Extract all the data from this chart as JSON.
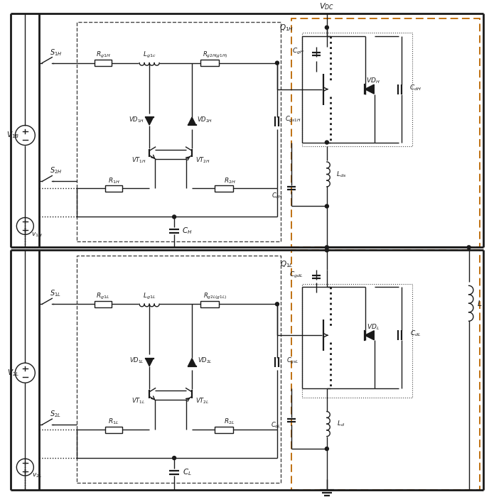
{
  "bg_color": "#ffffff",
  "line_color": "#1a1a1a",
  "dashed_color": "#444444",
  "orange_color": "#bb6600",
  "fig_width": 6.88,
  "fig_height": 7.0
}
